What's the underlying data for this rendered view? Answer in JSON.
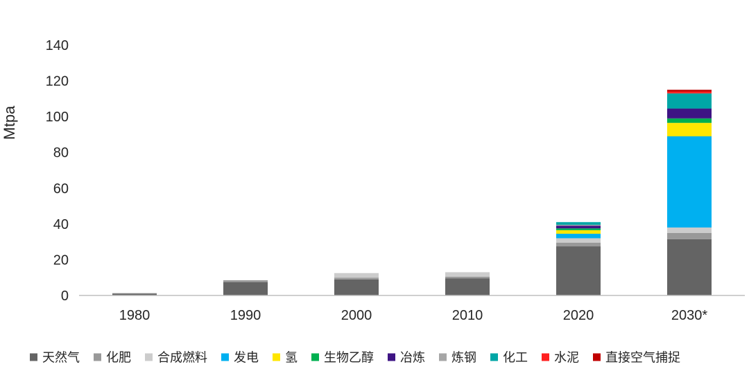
{
  "chart_data": {
    "type": "bar",
    "stacked": true,
    "title": "",
    "xlabel": "",
    "ylabel": "Mtpa",
    "ylim": [
      0,
      140
    ],
    "yticks": [
      0,
      20,
      40,
      60,
      80,
      100,
      120,
      140
    ],
    "grid": false,
    "legend_position": "bottom",
    "categories": [
      "1980",
      "1990",
      "2000",
      "2010",
      "2020",
      "2030*"
    ],
    "series": [
      {
        "name": "天然气",
        "color": "#646464",
        "values": [
          1,
          7.5,
          9,
          9.5,
          27.5,
          31.5
        ]
      },
      {
        "name": "化肥",
        "color": "#999999",
        "values": [
          0.3,
          1,
          1,
          1,
          2,
          3.5
        ]
      },
      {
        "name": "合成燃料",
        "color": "#cccccc",
        "values": [
          0,
          0,
          2.5,
          2.5,
          2.5,
          3
        ]
      },
      {
        "name": "发电",
        "color": "#00b0f0",
        "values": [
          0,
          0,
          0,
          0,
          2.5,
          51
        ]
      },
      {
        "name": "氢",
        "color": "#ffe600",
        "values": [
          0,
          0,
          0,
          0,
          2,
          7.5
        ]
      },
      {
        "name": "生物乙醇",
        "color": "#00b050",
        "values": [
          0,
          0,
          0,
          0,
          1,
          2.5
        ]
      },
      {
        "name": "冶炼",
        "color": "#3e1484",
        "values": [
          0,
          0,
          0,
          0,
          1.5,
          5.5
        ]
      },
      {
        "name": "炼钢",
        "color": "#a6a6a6",
        "values": [
          0,
          0,
          0,
          0,
          0.5,
          0
        ]
      },
      {
        "name": "化工",
        "color": "#00a6a6",
        "values": [
          0,
          0,
          0,
          0,
          1.5,
          8.5
        ]
      },
      {
        "name": "水泥",
        "color": "#ff2020",
        "values": [
          0,
          0,
          0,
          0,
          0,
          1
        ]
      },
      {
        "name": "直接空气捕捉",
        "color": "#c00000",
        "values": [
          0,
          0,
          0,
          0,
          0,
          1
        ]
      }
    ]
  }
}
